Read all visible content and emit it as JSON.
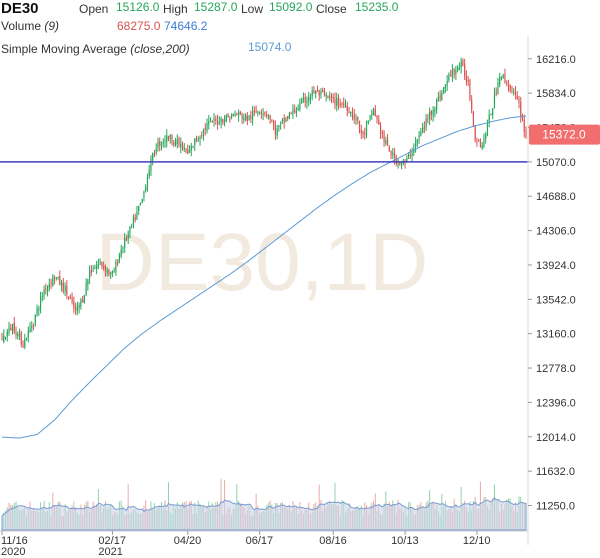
{
  "header": {
    "symbol": "DE30",
    "open_label": "Open",
    "open_value": "15126.0",
    "high_label": "High",
    "high_value": "15287.0",
    "low_label": "Low",
    "low_value": "15092.0",
    "close_label": "Close",
    "close_value": "15235.0",
    "volume_label": "Volume",
    "volume_period": "(9)",
    "volume_value": "68275.0",
    "volume_ma_value": "74646.2",
    "sma_label": "Simple Moving Average",
    "sma_params": "(close,200)",
    "sma_value": "15074.0"
  },
  "colors": {
    "up": "#26a65b",
    "down": "#d9534f",
    "sma": "#5b9bd5",
    "hline": "#3f3fbf",
    "price_tag": "#f26d6d",
    "volume_fill": "#c9d6ea",
    "volume_line": "#7a9bd0",
    "volume_ma_text": "#3b7bd9"
  },
  "chart_data": {
    "type": "candlestick",
    "watermark": "DE30,1D",
    "x_tick_labels": [
      {
        "label": "11/16",
        "sublabel": "2020",
        "index": 0
      },
      {
        "label": "02/17",
        "sublabel": "2021",
        "index": 63
      },
      {
        "label": "04/20",
        "index": 106
      },
      {
        "label": "06/17",
        "index": 147
      },
      {
        "label": "08/16",
        "index": 189
      },
      {
        "label": "10/13",
        "index": 230
      },
      {
        "label": "12/10",
        "index": 271
      }
    ],
    "y_ticks": [
      16216.0,
      15834.0,
      15452.0,
      15070.0,
      14688.0,
      14306.0,
      13924.0,
      13542.0,
      13160.0,
      12778.0,
      12396.0,
      12014.0,
      11632.0,
      11250.0
    ],
    "ylim": [
      11100,
      16380
    ],
    "last_price": "15372.0",
    "horizontal_line": 15070,
    "price_anchors": [
      [
        0,
        13100
      ],
      [
        6,
        13250
      ],
      [
        12,
        13050
      ],
      [
        18,
        13300
      ],
      [
        24,
        13650
      ],
      [
        30,
        13800
      ],
      [
        36,
        13650
      ],
      [
        42,
        13400
      ],
      [
        46,
        13550
      ],
      [
        50,
        13850
      ],
      [
        56,
        13950
      ],
      [
        63,
        13800
      ],
      [
        68,
        14100
      ],
      [
        74,
        14350
      ],
      [
        80,
        14650
      ],
      [
        84,
        15000
      ],
      [
        88,
        15250
      ],
      [
        95,
        15350
      ],
      [
        102,
        15250
      ],
      [
        106,
        15150
      ],
      [
        110,
        15300
      ],
      [
        118,
        15500
      ],
      [
        126,
        15550
      ],
      [
        134,
        15600
      ],
      [
        140,
        15550
      ],
      [
        147,
        15650
      ],
      [
        152,
        15600
      ],
      [
        156,
        15400
      ],
      [
        162,
        15550
      ],
      [
        170,
        15700
      ],
      [
        178,
        15850
      ],
      [
        184,
        15800
      ],
      [
        189,
        15750
      ],
      [
        196,
        15700
      ],
      [
        202,
        15550
      ],
      [
        206,
        15350
      ],
      [
        212,
        15650
      ],
      [
        218,
        15300
      ],
      [
        224,
        15100
      ],
      [
        230,
        15050
      ],
      [
        238,
        15350
      ],
      [
        244,
        15600
      ],
      [
        250,
        15800
      ],
      [
        256,
        16050
      ],
      [
        262,
        16150
      ],
      [
        266,
        15950
      ],
      [
        270,
        15350
      ],
      [
        274,
        15250
      ],
      [
        280,
        15700
      ],
      [
        284,
        16050
      ],
      [
        290,
        15900
      ],
      [
        295,
        15700
      ],
      [
        299,
        15350
      ]
    ],
    "sma_anchors": [
      [
        0,
        12010
      ],
      [
        10,
        12000
      ],
      [
        20,
        12040
      ],
      [
        30,
        12200
      ],
      [
        40,
        12420
      ],
      [
        50,
        12620
      ],
      [
        60,
        12810
      ],
      [
        70,
        13000
      ],
      [
        80,
        13160
      ],
      [
        90,
        13300
      ],
      [
        100,
        13430
      ],
      [
        110,
        13560
      ],
      [
        120,
        13690
      ],
      [
        130,
        13820
      ],
      [
        140,
        13960
      ],
      [
        150,
        14110
      ],
      [
        160,
        14260
      ],
      [
        170,
        14410
      ],
      [
        180,
        14560
      ],
      [
        190,
        14700
      ],
      [
        200,
        14830
      ],
      [
        210,
        14950
      ],
      [
        220,
        15050
      ],
      [
        230,
        15150
      ],
      [
        240,
        15250
      ],
      [
        250,
        15330
      ],
      [
        260,
        15410
      ],
      [
        270,
        15470
      ],
      [
        280,
        15520
      ],
      [
        290,
        15560
      ],
      [
        299,
        15580
      ]
    ]
  }
}
